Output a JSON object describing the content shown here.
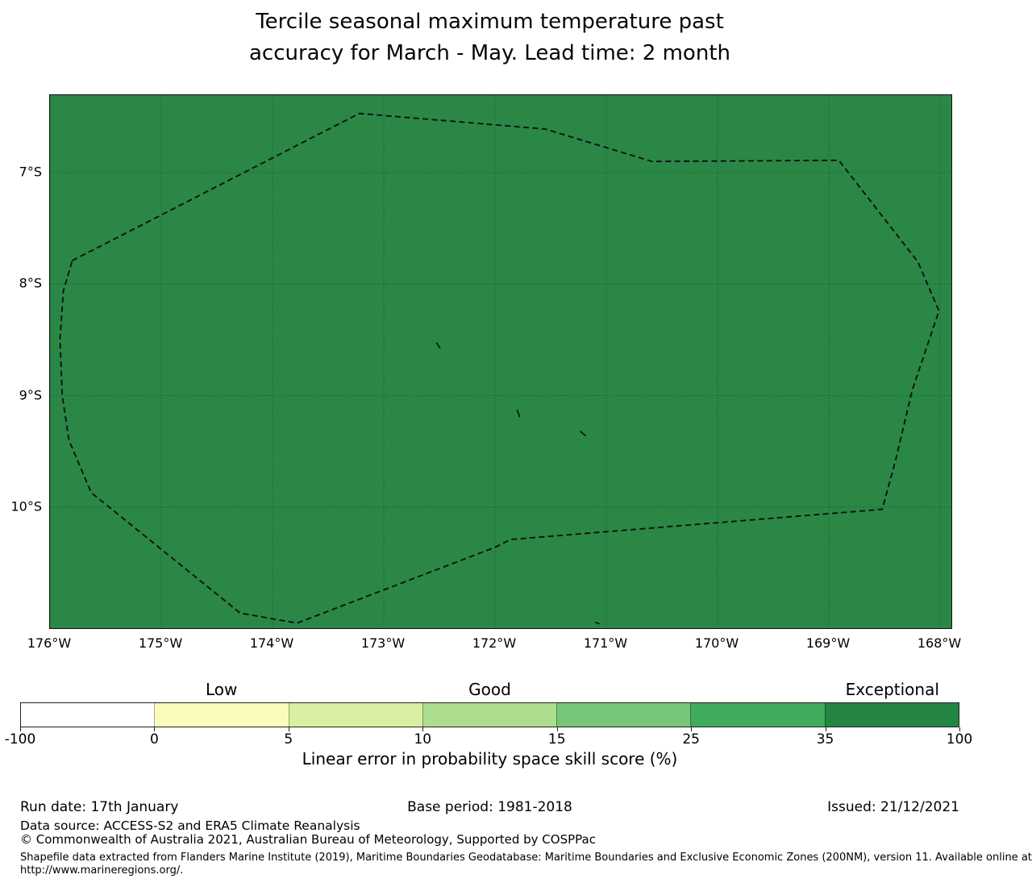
{
  "title": {
    "line1": "Tercile seasonal maximum temperature past",
    "line2": "accuracy for March - May. Lead time: 2 month"
  },
  "map": {
    "fill_color": "#2a8746",
    "x_tick_labels": [
      "176°W",
      "175°W",
      "174°W",
      "173°W",
      "172°W",
      "171°W",
      "170°W",
      "169°W",
      "168°W"
    ],
    "y_tick_labels": [
      "7°S",
      "8°S",
      "9°S",
      "10°S"
    ]
  },
  "colorbar": {
    "segment_colors": [
      "#ffffff",
      "#f9fcbd",
      "#d9f0a3",
      "#addd8e",
      "#78c679",
      "#41ab5d",
      "#238443"
    ],
    "tick_labels": [
      "-100",
      "0",
      "5",
      "10",
      "15",
      "25",
      "35",
      "100"
    ],
    "categories": [
      {
        "label": "Low",
        "segment": 1
      },
      {
        "label": "Good",
        "segment": 3
      },
      {
        "label": "Exceptional",
        "segment": 6
      }
    ],
    "axis_label": "Linear error in probability space skill score (%)"
  },
  "footer": {
    "run_date": "Run date: 17th January",
    "base_period": "Base period: 1981-2018",
    "issued": "Issued: 21/12/2021",
    "data_source": "Data source: ACCESS-S2 and ERA5 Climate Reanalysis",
    "copyright": "© Commonwealth of Australia 2021, Australian Bureau of Meteorology, Supported by COSPPac",
    "shapefile_line1": "Shapefile data extracted from Flanders Marine Institute (2019), Maritime Boundaries Geodatabase: Maritime Boundaries and Exclusive Economic Zones (200NM), version 11. Available online at",
    "shapefile_line2": "http://www.marineregions.org/."
  },
  "chart_data": {
    "type": "heatmap",
    "subtype": "geographic-skill-map",
    "title": "Tercile seasonal maximum temperature past accuracy for March - May. Lead time: 2 month",
    "region": "Exclusive Economic Zone around 168°W-176°W, 7°S-10°S (dashed maritime boundary)",
    "fill_value_bin": "35 to 100 (Exceptional)",
    "fill_color": "#2a8746",
    "colorbar": {
      "label": "Linear error in probability space skill score (%)",
      "bin_edges": [
        -100,
        0,
        5,
        10,
        15,
        25,
        35,
        100
      ],
      "bin_colors": [
        "#ffffff",
        "#f9fcbd",
        "#d9f0a3",
        "#addd8e",
        "#78c679",
        "#41ab5d",
        "#238443"
      ],
      "category_labels": [
        {
          "label": "Low",
          "over_bin": "0-5"
        },
        {
          "label": "Good",
          "over_bin": "10-15"
        },
        {
          "label": "Exceptional",
          "over_bin": "35-100"
        }
      ],
      "orientation": "horizontal"
    },
    "axes": {
      "x_ticks": [
        176,
        175,
        174,
        173,
        172,
        171,
        170,
        169,
        168
      ],
      "x_unit": "degrees West",
      "y_ticks": [
        7,
        8,
        9,
        10
      ],
      "y_unit": "degrees South",
      "x_range_degW": [
        176.0,
        167.9
      ],
      "y_range_degS": [
        6.31,
        11.09
      ],
      "grid": true
    },
    "eez_boundary_degW_degS": [
      [
        175.8,
        7.79
      ],
      [
        173.22,
        6.47
      ],
      [
        171.55,
        6.61
      ],
      [
        170.59,
        6.9
      ],
      [
        168.91,
        6.89
      ],
      [
        168.2,
        7.8
      ],
      [
        168.01,
        8.24
      ],
      [
        168.25,
        8.95
      ],
      [
        168.4,
        9.58
      ],
      [
        168.52,
        10.02
      ],
      [
        171.86,
        10.29
      ],
      [
        172.0,
        10.36
      ],
      [
        173.78,
        11.04
      ],
      [
        174.29,
        10.95
      ],
      [
        175.63,
        9.87
      ],
      [
        175.83,
        9.4
      ],
      [
        175.89,
        9.0
      ],
      [
        175.91,
        8.5
      ],
      [
        175.88,
        8.06
      ]
    ],
    "islands_degW_degS": [
      [
        172.51,
        8.55
      ],
      [
        171.79,
        9.16
      ],
      [
        171.21,
        9.34
      ],
      [
        171.08,
        11.04
      ]
    ]
  }
}
